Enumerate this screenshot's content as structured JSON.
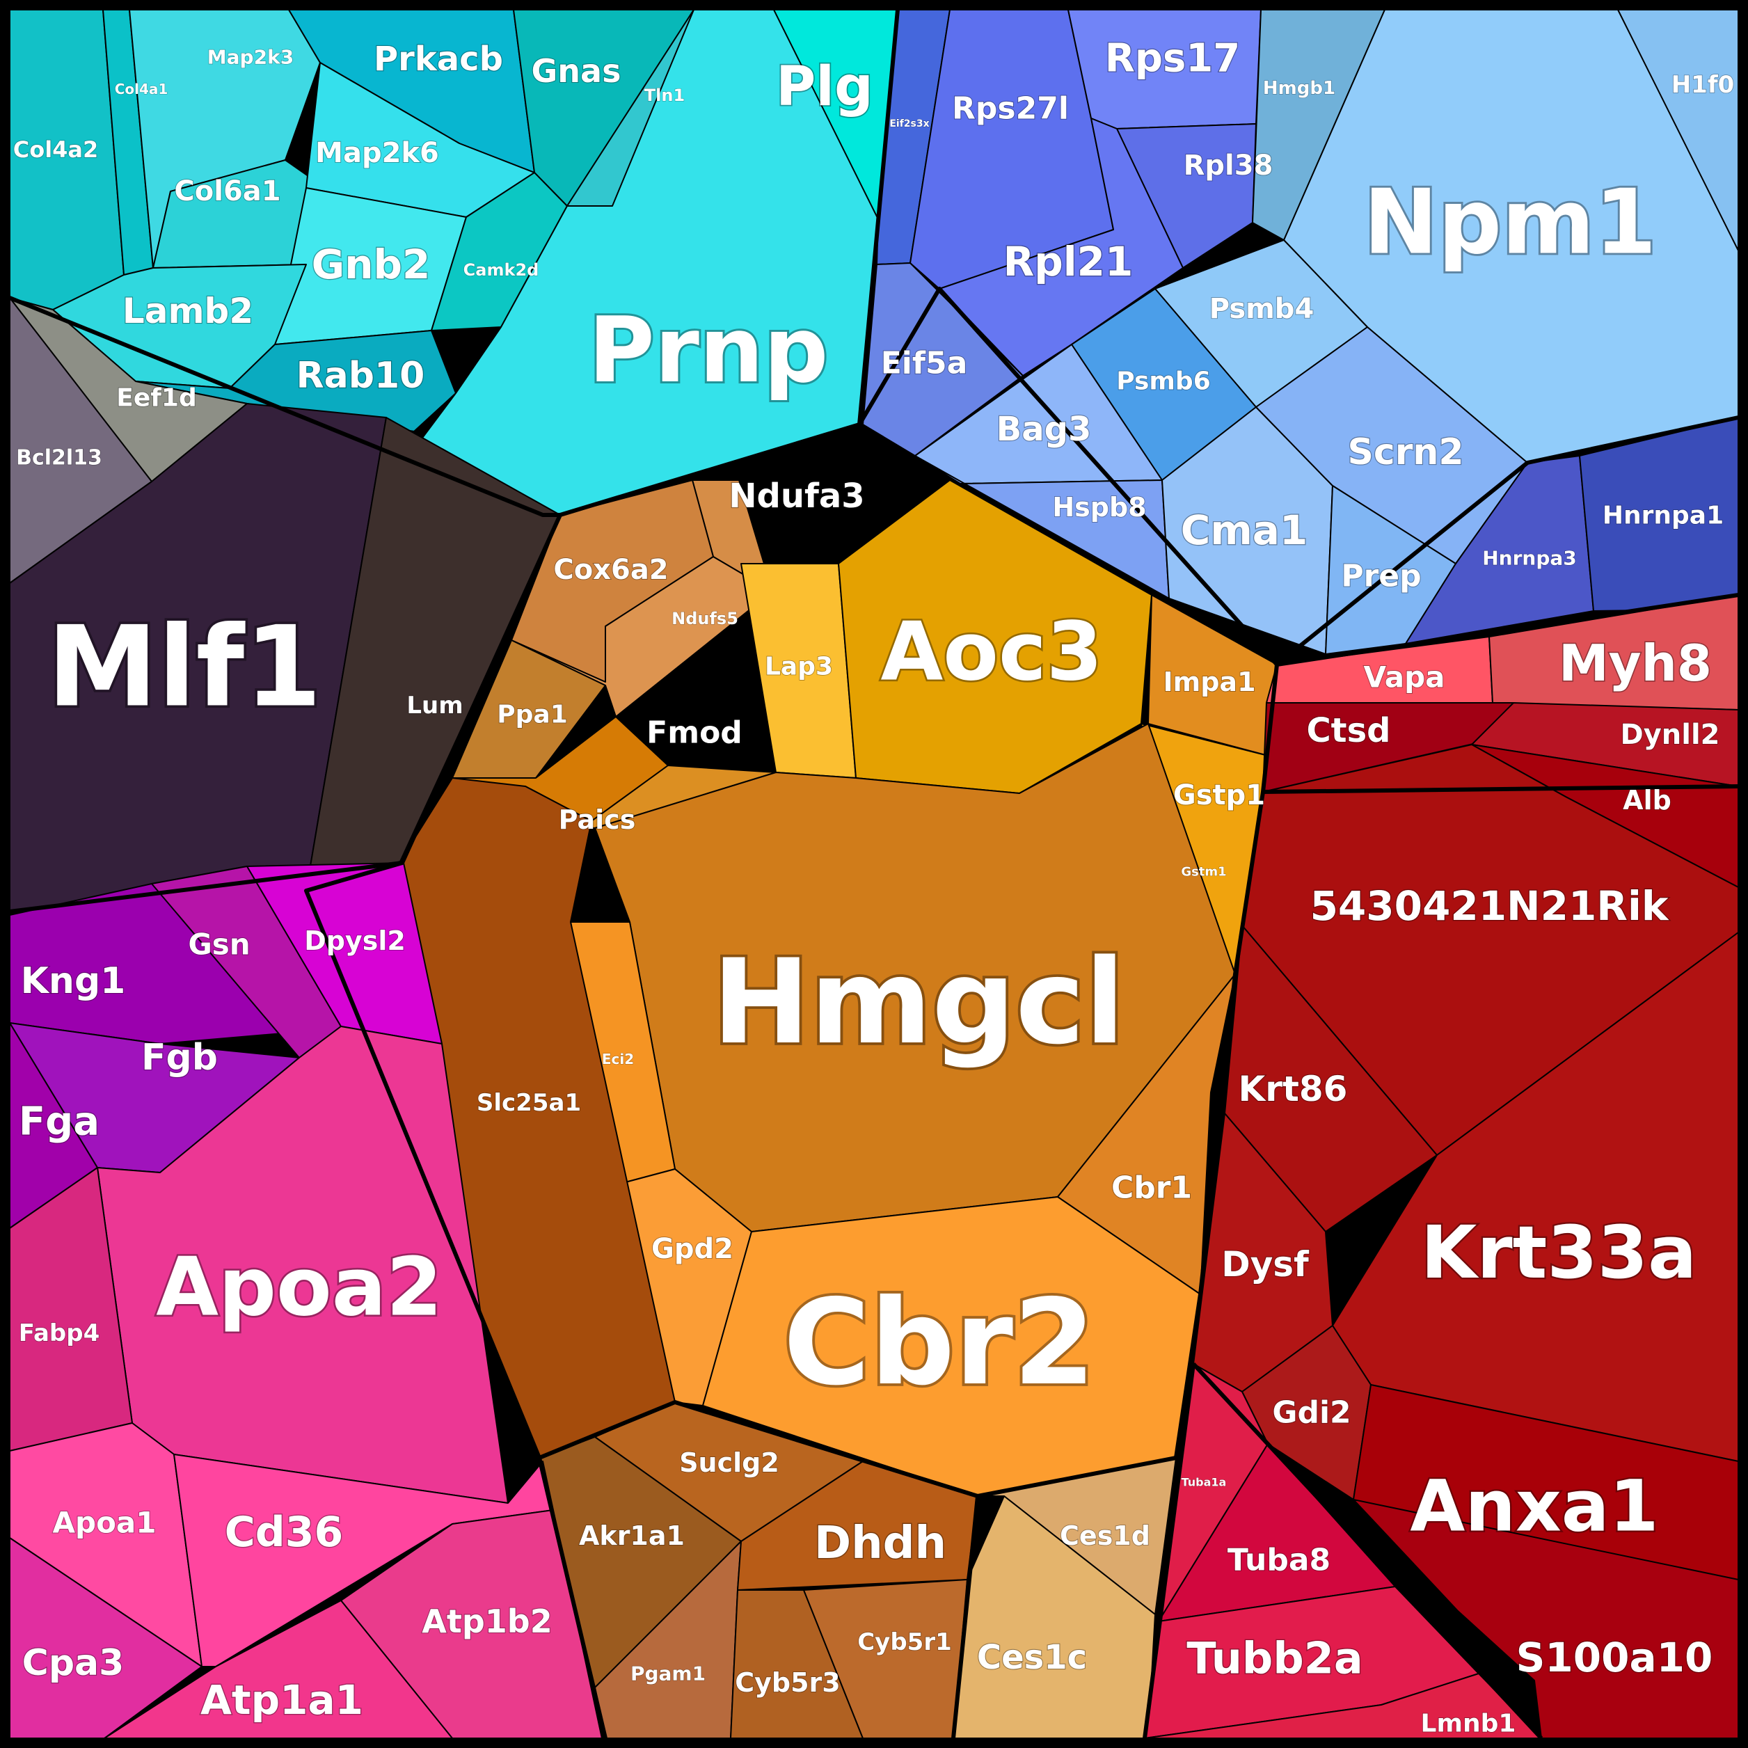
{
  "colors": {
    "cyan": "#2ad3dd",
    "blue": "#7f97f2",
    "gold": "#d07c1a",
    "red": "#b01010",
    "magenta": "#e0338f",
    "purple": "#3a2140"
  },
  "cells": [
    {
      "label": "Col4a2",
      "color": "#12c1c7"
    },
    {
      "label": "Col4a1",
      "color": "#0bc1c8"
    },
    {
      "label": "Map2k3",
      "color": "#3fd9e3"
    },
    {
      "label": "Prkacb",
      "color": "#08b6d0"
    },
    {
      "label": "Gnas",
      "color": "#08b8b8"
    },
    {
      "label": "Tln1",
      "color": "#32c7cf"
    },
    {
      "label": "Plg",
      "color": "#00e8dc"
    },
    {
      "label": "Col6a1",
      "color": "#2cd2d7"
    },
    {
      "label": "Map2k6",
      "color": "#35e0ec"
    },
    {
      "label": "Gnb2",
      "color": "#42e8ee"
    },
    {
      "label": "Camk2d",
      "color": "#0cc7c3"
    },
    {
      "label": "Lamb2",
      "color": "#30d8de"
    },
    {
      "label": "Rab10",
      "color": "#0aabc0"
    },
    {
      "label": "Prnp",
      "color": "#34e2ea"
    },
    {
      "label": "Eif2s3x",
      "color": "#4567dc"
    },
    {
      "label": "Rps27l",
      "color": "#5d70ee"
    },
    {
      "label": "Rps17",
      "color": "#7184f7"
    },
    {
      "label": "Rpl38",
      "color": "#5e6fe8"
    },
    {
      "label": "Rpl21",
      "color": "#6677f2"
    },
    {
      "label": "Hmgb1",
      "color": "#70b1d9"
    },
    {
      "label": "H1f0",
      "color": "#86c1f2"
    },
    {
      "label": "Npm1",
      "color": "#91ccfa"
    },
    {
      "label": "Eif5a",
      "color": "#6a85e6"
    },
    {
      "label": "Psmb4",
      "color": "#8fc9f8"
    },
    {
      "label": "Psmb6",
      "color": "#4b9ee9"
    },
    {
      "label": "Bag3",
      "color": "#8eb6f9"
    },
    {
      "label": "Hspb8",
      "color": "#7da1f3"
    },
    {
      "label": "Cma1",
      "color": "#94c2f8"
    },
    {
      "label": "Scrn2",
      "color": "#86b3f6"
    },
    {
      "label": "Prep",
      "color": "#80b6f4"
    },
    {
      "label": "Hnrnpa3",
      "color": "#4c57c8"
    },
    {
      "label": "Hnrnpa1",
      "color": "#3a4db9"
    },
    {
      "label": "Eef1d",
      "color": "#8d8f86"
    },
    {
      "label": "Bcl2l13",
      "color": "#756a7e"
    },
    {
      "label": "Mlf1",
      "color": "#34203b"
    },
    {
      "label": "Lum",
      "color": "#3d2f2c"
    },
    {
      "label": "Ndufa3",
      "color": "#d68d47"
    },
    {
      "label": "Cox6a2",
      "color": "#cf833e"
    },
    {
      "label": "Ndufs5",
      "color": "#dd9450"
    },
    {
      "label": "Ppa1",
      "color": "#c27f2d"
    },
    {
      "label": "Lap3",
      "color": "#fbbf31"
    },
    {
      "label": "Aoc3",
      "color": "#e4a101"
    },
    {
      "label": "Impa1",
      "color": "#e28d1f"
    },
    {
      "label": "Fmod",
      "color": "#d67b05"
    },
    {
      "label": "Paics",
      "color": "#dc8f22"
    },
    {
      "label": "Gstp1",
      "color": "#f0a30e"
    },
    {
      "label": "Gstm1",
      "color": "#fbbf31"
    },
    {
      "label": "Hmgcl",
      "color": "#d07c1a"
    },
    {
      "label": "Eci2",
      "color": "#f59423"
    },
    {
      "label": "Cbr1",
      "color": "#e08424"
    },
    {
      "label": "Gpd2",
      "color": "#fb9d36"
    },
    {
      "label": "Cbr2",
      "color": "#fd9d2f"
    },
    {
      "label": "Slc25a1",
      "color": "#a54c0c"
    },
    {
      "label": "Suclg2",
      "color": "#b9651f"
    },
    {
      "label": "Akr1a1",
      "color": "#9b5b1f"
    },
    {
      "label": "Pgam1",
      "color": "#b76a3d"
    },
    {
      "label": "Dhdh",
      "color": "#b85c17"
    },
    {
      "label": "Cyb5r3",
      "color": "#b06122"
    },
    {
      "label": "Cyb5r1",
      "color": "#bc6a2c"
    },
    {
      "label": "Ces1d",
      "color": "#dcaa6d"
    },
    {
      "label": "Ces1c",
      "color": "#e4b46c"
    },
    {
      "label": "Vapa",
      "color": "#ff5565"
    },
    {
      "label": "Myh8",
      "color": "#e05157"
    },
    {
      "label": "Ctsd",
      "color": "#a10014"
    },
    {
      "label": "Dynll2",
      "color": "#b71423"
    },
    {
      "label": "Alb",
      "color": "#a7000c"
    },
    {
      "label": "5430421N21Rik",
      "color": "#ab0f0f"
    },
    {
      "label": "Krt86",
      "color": "#ab1111"
    },
    {
      "label": "Krt33a",
      "color": "#b11212"
    },
    {
      "label": "Dysf",
      "color": "#b21515"
    },
    {
      "label": "Gdi2",
      "color": "#ac1a1a"
    },
    {
      "label": "Anxa1",
      "color": "#a80008"
    },
    {
      "label": "S100a10",
      "color": "#a8000f"
    },
    {
      "label": "Tuba1a",
      "color": "#e01e49"
    },
    {
      "label": "Tuba8",
      "color": "#d2073e"
    },
    {
      "label": "Tubb2a",
      "color": "#e21c4c"
    },
    {
      "label": "Lmnb1",
      "color": "#e02047"
    },
    {
      "label": "Kng1",
      "color": "#9b00ae"
    },
    {
      "label": "Gsn",
      "color": "#b614a8"
    },
    {
      "label": "Dpysl2",
      "color": "#d703d4"
    },
    {
      "label": "Fgb",
      "color": "#a013bc"
    },
    {
      "label": "Fga",
      "color": "#a101aa"
    },
    {
      "label": "Apoa2",
      "color": "#ec3794"
    },
    {
      "label": "Fabp4",
      "color": "#d8287f"
    },
    {
      "label": "Apoa1",
      "color": "#ff4aa2"
    },
    {
      "label": "Cd36",
      "color": "#ff459f"
    },
    {
      "label": "Cpa3",
      "color": "#e12ea0"
    },
    {
      "label": "Atp1b2",
      "color": "#ea3b8c"
    },
    {
      "label": "Atp1a1",
      "color": "#f2368c"
    }
  ]
}
